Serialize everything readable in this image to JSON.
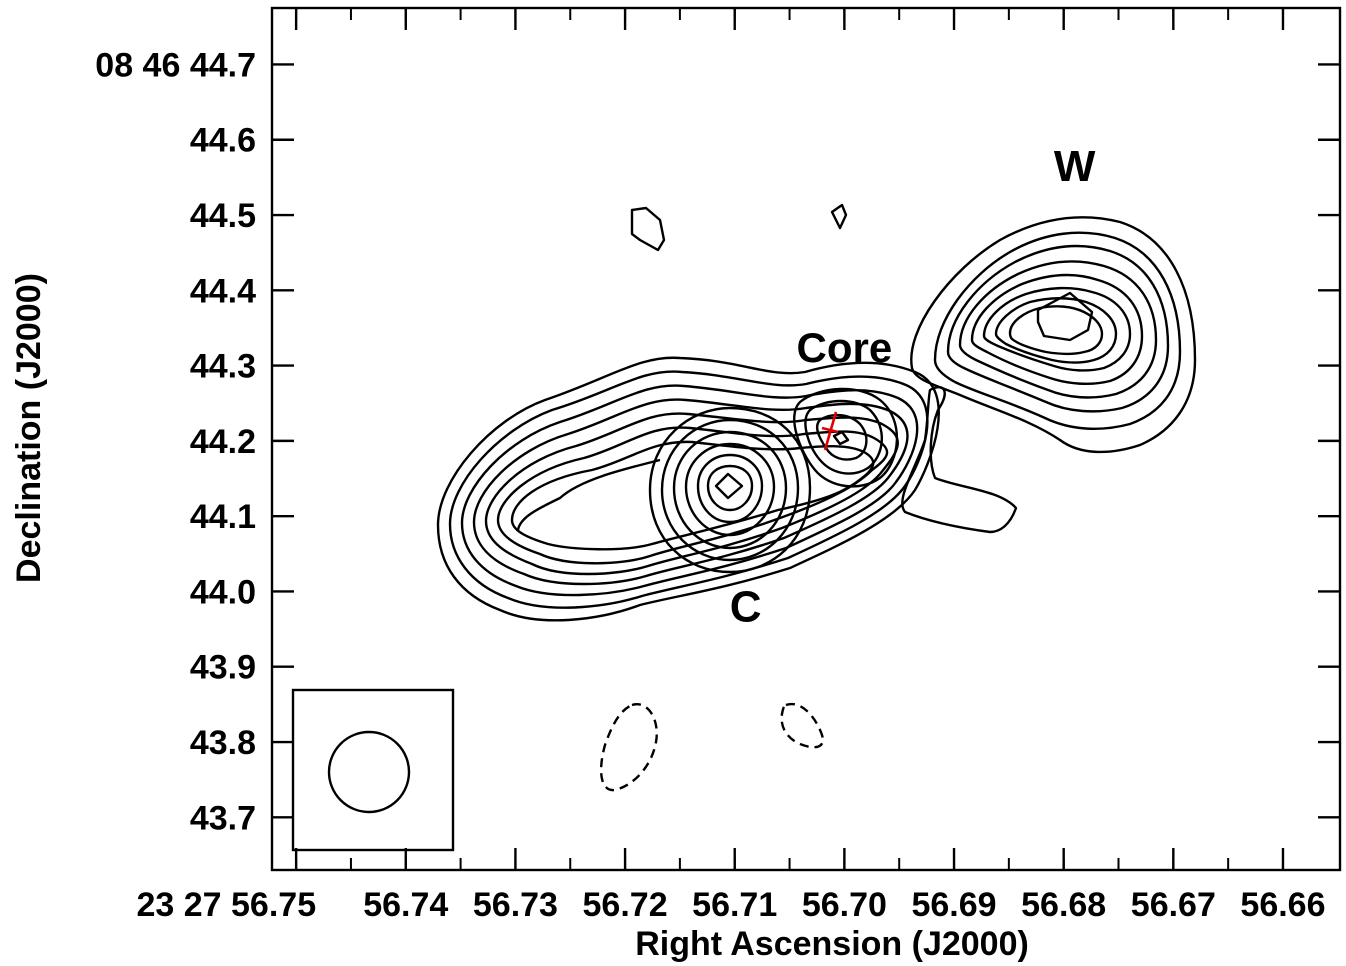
{
  "chart_data": {
    "type": "contour",
    "xlabel": "Right Ascension (J2000)",
    "ylabel": "Declination (J2000)",
    "x_ticks": [
      {
        "value": 56.75,
        "label": "23 27 56.75"
      },
      {
        "value": 56.74,
        "label": "56.74"
      },
      {
        "value": 56.73,
        "label": "56.73"
      },
      {
        "value": 56.72,
        "label": "56.72"
      },
      {
        "value": 56.71,
        "label": "56.71"
      },
      {
        "value": 56.7,
        "label": "56.70"
      },
      {
        "value": 56.69,
        "label": "56.69"
      },
      {
        "value": 56.68,
        "label": "56.68"
      },
      {
        "value": 56.67,
        "label": "56.67"
      },
      {
        "value": 56.66,
        "label": "56.66"
      }
    ],
    "y_ticks": [
      {
        "value": 44.7,
        "label": "08 46 44.7"
      },
      {
        "value": 44.6,
        "label": "44.6"
      },
      {
        "value": 44.5,
        "label": "44.5"
      },
      {
        "value": 44.4,
        "label": "44.4"
      },
      {
        "value": 44.3,
        "label": "44.3"
      },
      {
        "value": 44.2,
        "label": "44.2"
      },
      {
        "value": 44.1,
        "label": "44.1"
      },
      {
        "value": 44.0,
        "label": "44.0"
      },
      {
        "value": 43.9,
        "label": "43.9"
      },
      {
        "value": 43.8,
        "label": "43.8"
      },
      {
        "value": 43.7,
        "label": "43.7"
      }
    ],
    "xlim": [
      56.7522,
      56.6548
    ],
    "ylim": [
      43.63,
      44.775
    ],
    "annotations": [
      {
        "text": "W",
        "x": 56.679,
        "y": 44.545
      },
      {
        "text": "Core",
        "x": 56.7,
        "y": 44.305
      },
      {
        "text": "C",
        "x": 56.709,
        "y": 43.96
      }
    ],
    "core_marker": {
      "x": 56.7002,
      "y": 44.21,
      "color": "#e00000"
    },
    "beam": {
      "x": 56.7386,
      "y": 43.76,
      "box": {
        "x0": 56.7452,
        "x1": 56.7306,
        "y0": 43.66,
        "y1": 43.87
      }
    },
    "features": [
      {
        "name": "jet-contours",
        "levels": 8
      },
      {
        "name": "component-c-contours",
        "peak": [
          56.709,
          44.14
        ],
        "levels": 7
      },
      {
        "name": "core-contours",
        "levels": 4
      },
      {
        "name": "lobe-w-contours",
        "peak": [
          56.679,
          44.37
        ],
        "levels": 9
      },
      {
        "name": "southern-extension",
        "levels": 1
      },
      {
        "name": "isolated-positive-contours",
        "count": 2
      },
      {
        "name": "negative-contours",
        "dashed": true,
        "count": 2
      }
    ]
  }
}
